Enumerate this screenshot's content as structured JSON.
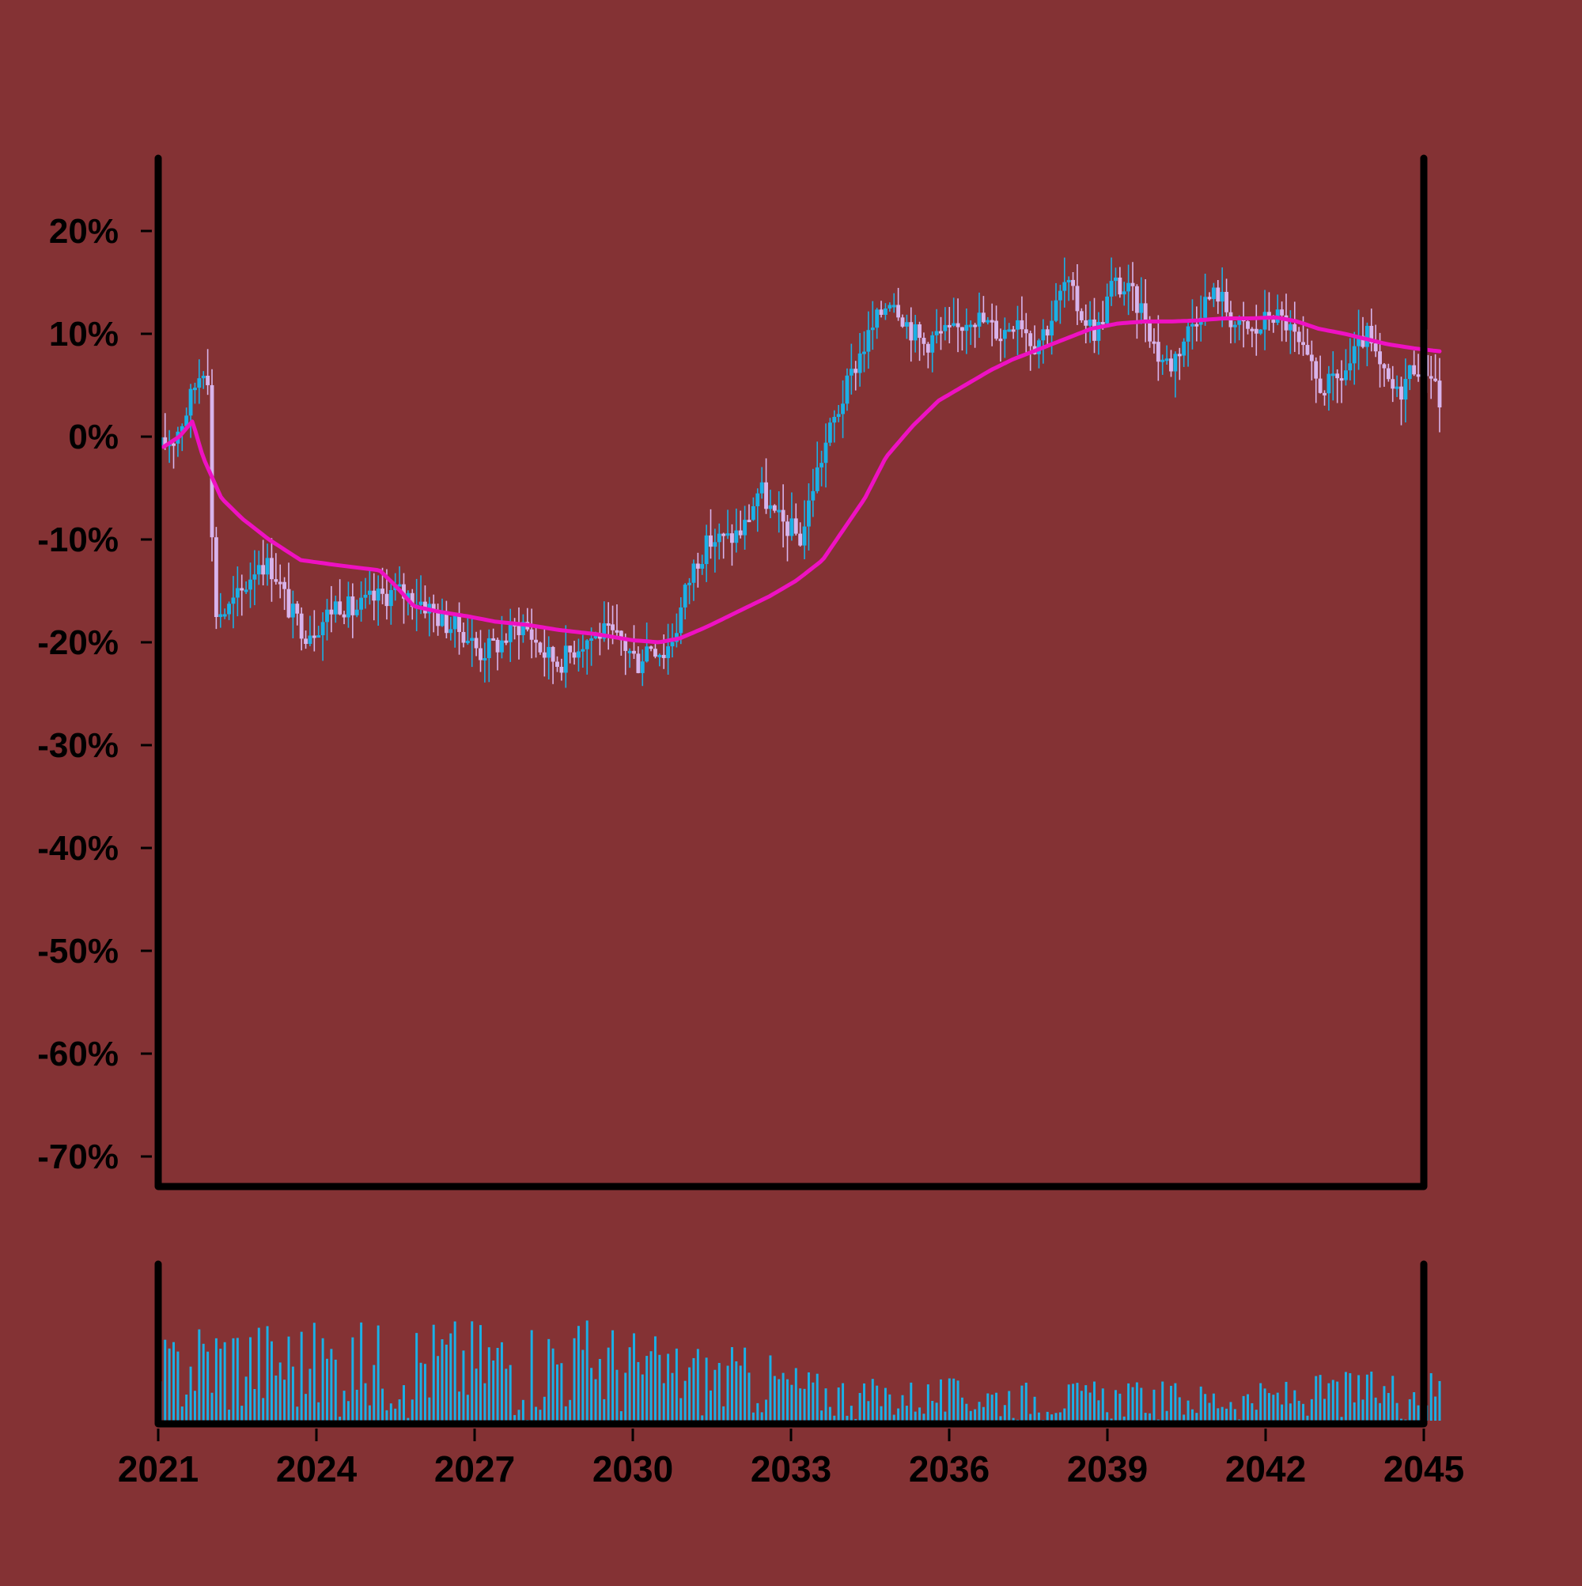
{
  "theme": {
    "background": "#843234",
    "up_color": "#1ab0e6",
    "down_color": "#d8b4ec",
    "moving_average_color": "#ee11c2",
    "volume_color": "#1ab0e6",
    "axis_color": "#000000"
  },
  "chart_data": [
    {
      "type": "candlestick",
      "title": "",
      "xlabel": "",
      "ylabel": "",
      "x_range": [
        2021,
        2045
      ],
      "ylim": [
        -72,
        27
      ],
      "yticks": [
        20,
        10,
        0,
        -10,
        -20,
        -30,
        -40,
        -50,
        -60,
        -70
      ],
      "ytick_labels": [
        "20%",
        "10%",
        "0%",
        "-10%",
        "-20%",
        "-30%",
        "-40%",
        "-50%",
        "-60%",
        "-70%"
      ],
      "grid": false,
      "legend": "none",
      "price_keypoints": [
        [
          2021.05,
          -1
        ],
        [
          2021.3,
          0
        ],
        [
          2021.5,
          2
        ],
        [
          2021.7,
          5
        ],
        [
          2021.85,
          7
        ],
        [
          2021.95,
          6
        ],
        [
          2022.05,
          -17
        ],
        [
          2022.3,
          -17
        ],
        [
          2022.6,
          -15
        ],
        [
          2022.9,
          -12
        ],
        [
          2023.2,
          -13
        ],
        [
          2023.5,
          -17
        ],
        [
          2023.8,
          -19
        ],
        [
          2024.1,
          -18
        ],
        [
          2024.4,
          -16
        ],
        [
          2024.7,
          -17
        ],
        [
          2025.0,
          -16
        ],
        [
          2025.5,
          -15
        ],
        [
          2026.0,
          -16
        ],
        [
          2026.4,
          -18
        ],
        [
          2026.8,
          -19
        ],
        [
          2027.1,
          -21
        ],
        [
          2027.5,
          -20
        ],
        [
          2027.9,
          -18
        ],
        [
          2028.3,
          -21
        ],
        [
          2028.6,
          -22
        ],
        [
          2029.0,
          -20
        ],
        [
          2029.4,
          -19
        ],
        [
          2029.8,
          -20
        ],
        [
          2030.1,
          -22
        ],
        [
          2030.3,
          -20
        ],
        [
          2030.6,
          -21
        ],
        [
          2030.8,
          -19
        ],
        [
          2031.0,
          -15
        ],
        [
          2031.2,
          -12
        ],
        [
          2031.5,
          -10
        ],
        [
          2031.8,
          -10
        ],
        [
          2032.1,
          -9
        ],
        [
          2032.4,
          -5
        ],
        [
          2032.7,
          -8
        ],
        [
          2033.0,
          -9
        ],
        [
          2033.2,
          -10
        ],
        [
          2033.4,
          -5
        ],
        [
          2033.7,
          0
        ],
        [
          2034.0,
          4
        ],
        [
          2034.3,
          8
        ],
        [
          2034.6,
          11
        ],
        [
          2034.9,
          14
        ],
        [
          2035.2,
          11
        ],
        [
          2035.5,
          9
        ],
        [
          2035.8,
          10
        ],
        [
          2036.1,
          10
        ],
        [
          2036.4,
          12
        ],
        [
          2036.7,
          11
        ],
        [
          2037.0,
          10
        ],
        [
          2037.3,
          12
        ],
        [
          2037.6,
          9
        ],
        [
          2037.9,
          11
        ],
        [
          2038.2,
          15
        ],
        [
          2038.5,
          12
        ],
        [
          2038.8,
          10
        ],
        [
          2039.1,
          15
        ],
        [
          2039.4,
          14
        ],
        [
          2039.7,
          12
        ],
        [
          2039.95,
          8
        ],
        [
          2040.2,
          7
        ],
        [
          2040.5,
          10
        ],
        [
          2040.8,
          13
        ],
        [
          2041.1,
          14
        ],
        [
          2041.4,
          11
        ],
        [
          2041.8,
          10
        ],
        [
          2042.1,
          12
        ],
        [
          2042.4,
          11
        ],
        [
          2042.7,
          8
        ],
        [
          2043.0,
          5
        ],
        [
          2043.3,
          5
        ],
        [
          2043.6,
          7
        ],
        [
          2043.9,
          10
        ],
        [
          2044.2,
          6
        ],
        [
          2044.5,
          4
        ],
        [
          2044.8,
          7
        ],
        [
          2045.0,
          7
        ],
        [
          2045.2,
          6
        ],
        [
          2045.3,
          3
        ]
      ],
      "moving_average_keypoints": [
        [
          2021.1,
          -1
        ],
        [
          2021.4,
          0
        ],
        [
          2021.65,
          1.5
        ],
        [
          2021.85,
          -2
        ],
        [
          2022.2,
          -6
        ],
        [
          2022.6,
          -8
        ],
        [
          2023.1,
          -10
        ],
        [
          2023.7,
          -12
        ],
        [
          2024.4,
          -12.5
        ],
        [
          2025.2,
          -13
        ],
        [
          2025.5,
          -14.5
        ],
        [
          2025.85,
          -16.5
        ],
        [
          2026.3,
          -17
        ],
        [
          2026.9,
          -17.5
        ],
        [
          2027.4,
          -18
        ],
        [
          2028.0,
          -18.3
        ],
        [
          2028.6,
          -18.8
        ],
        [
          2029.3,
          -19.2
        ],
        [
          2030.0,
          -19.8
        ],
        [
          2030.5,
          -20
        ],
        [
          2030.9,
          -19.6
        ],
        [
          2031.4,
          -18.5
        ],
        [
          2032.0,
          -17
        ],
        [
          2032.6,
          -15.5
        ],
        [
          2033.1,
          -14
        ],
        [
          2033.6,
          -12
        ],
        [
          2034.0,
          -9
        ],
        [
          2034.4,
          -6
        ],
        [
          2034.8,
          -2
        ],
        [
          2035.3,
          1
        ],
        [
          2035.8,
          3.5
        ],
        [
          2036.3,
          5
        ],
        [
          2036.8,
          6.5
        ],
        [
          2037.2,
          7.5
        ],
        [
          2037.7,
          8.5
        ],
        [
          2038.2,
          9.5
        ],
        [
          2038.7,
          10.5
        ],
        [
          2039.2,
          11
        ],
        [
          2039.7,
          11.2
        ],
        [
          2040.2,
          11.2
        ],
        [
          2040.7,
          11.3
        ],
        [
          2041.2,
          11.5
        ],
        [
          2041.7,
          11.5
        ],
        [
          2042.2,
          11.6
        ],
        [
          2042.6,
          11.2
        ],
        [
          2043.0,
          10.5
        ],
        [
          2043.5,
          10
        ],
        [
          2043.9,
          9.5
        ],
        [
          2044.3,
          9
        ],
        [
          2044.8,
          8.6
        ],
        [
          2045.3,
          8.3
        ]
      ],
      "moving_average_extent": [
        2021.1,
        2045.3
      ]
    },
    {
      "type": "bar",
      "title": "",
      "xlabel": "",
      "ylabel": "",
      "x_range": [
        2021,
        2045
      ],
      "xticks": [
        2021,
        2024,
        2027,
        2030,
        2033,
        2036,
        2039,
        2042,
        2045
      ],
      "xtick_labels": [
        "2021",
        "2024",
        "2027",
        "2030",
        "2033",
        "2036",
        "2039",
        "2042",
        "2045"
      ],
      "ylim": [
        0,
        1.1
      ],
      "volume_envelope": [
        [
          2021.0,
          0.55
        ],
        [
          2021.8,
          0.75
        ],
        [
          2022.5,
          0.75
        ],
        [
          2023.5,
          0.72
        ],
        [
          2024.5,
          0.7
        ],
        [
          2025.5,
          0.72
        ],
        [
          2026.5,
          0.75
        ],
        [
          2027.5,
          0.72
        ],
        [
          2028.5,
          0.75
        ],
        [
          2029.5,
          0.72
        ],
        [
          2030.5,
          0.6
        ],
        [
          2031.5,
          0.55
        ],
        [
          2032.5,
          0.5
        ],
        [
          2033.5,
          0.35
        ],
        [
          2034.5,
          0.3
        ],
        [
          2036.0,
          0.3
        ],
        [
          2038.0,
          0.28
        ],
        [
          2040.0,
          0.28
        ],
        [
          2041.5,
          0.25
        ],
        [
          2042.5,
          0.3
        ],
        [
          2043.5,
          0.35
        ],
        [
          2045.3,
          0.38
        ]
      ]
    }
  ]
}
